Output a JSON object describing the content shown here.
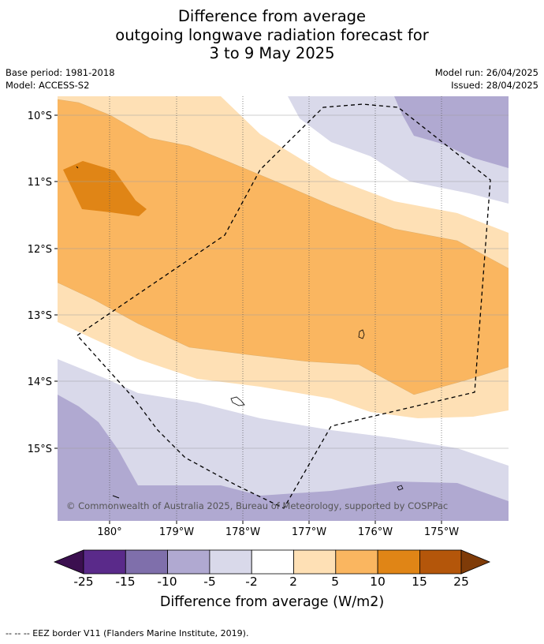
{
  "header": {
    "title_line1": "Difference from average",
    "title_line2": "outgoing longwave radiation forecast for",
    "title_line3": "3 to 9 May 2025",
    "base_period": "Base period: 1981-2018",
    "model": "Model: ACCESS-S2",
    "model_run": "Model run: 26/04/2025",
    "issued": "Issued: 28/04/2025"
  },
  "map": {
    "lat_labels": [
      "10°S",
      "11°S",
      "12°S",
      "13°S",
      "14°S",
      "15°S"
    ],
    "lon_labels": [
      "180°",
      "179°W",
      "178°W",
      "177°W",
      "176°W",
      "175°W"
    ],
    "copyright": "© Commonwealth of Australia 2025, Bureau of Meteorology, supported by COSPPac",
    "colors": {
      "neg25": "#3b0f4f",
      "neg15": "#5a2a8a",
      "neg10": "#7f6fab",
      "neg5": "#b0a9d1",
      "neg2": "#d9d9ea",
      "zero": "#ffffff",
      "pos2": "#fee0b5",
      "pos5": "#fab660",
      "pos10": "#e08516",
      "pos15": "#b4560a",
      "pos25": "#7f3b08"
    }
  },
  "colorbar": {
    "ticks": [
      "-25",
      "-15",
      "-10",
      "-5",
      "-2",
      "2",
      "5",
      "10",
      "15",
      "25"
    ],
    "title": "Difference from average (W/m2)"
  },
  "footnote": "--  --  -- EEZ border V11 (Flanders Marine Institute, 2019)."
}
